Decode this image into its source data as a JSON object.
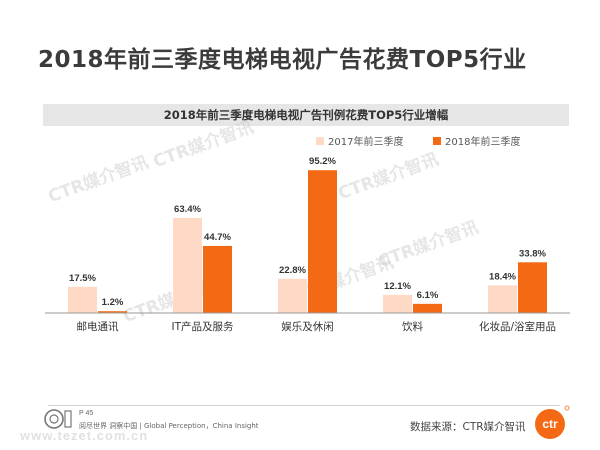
{
  "page": {
    "title": "2018年前三季度电梯电视广告花费TOP5行业",
    "page_number": "P 45",
    "slogan": "阅尽世界  洞察中国 | Global Perception，China Insight",
    "source": "数据来源：CTR媒介智讯",
    "logo_text": "ctr",
    "watermark": "CTR媒介智讯",
    "url_watermark": "www.tezet.com.cn"
  },
  "colors": {
    "series_2017": "#fdd9c6",
    "series_2018": "#f46a14",
    "axis": "#999999"
  },
  "chart_data": {
    "type": "bar",
    "title": "2018年前三季度电梯电视广告刊例花费TOP5行业增幅",
    "categories": [
      "邮电通讯",
      "IT产品及服务",
      "娱乐及休闲",
      "饮料",
      "化妆品/浴室用品"
    ],
    "series": [
      {
        "name": "2017年前三季度",
        "values": [
          17.5,
          63.4,
          22.8,
          12.1,
          18.4
        ],
        "labels": [
          "17.5%",
          "63.4%",
          "22.8%",
          "12.1%",
          "18.4%"
        ]
      },
      {
        "name": "2018年前三季度",
        "values": [
          1.2,
          44.7,
          95.2,
          6.1,
          33.8
        ],
        "labels": [
          "1.2%",
          "44.7%",
          "95.2%",
          "6.1%",
          "33.8%"
        ]
      }
    ],
    "ylim": [
      0,
      100
    ],
    "grid": false,
    "legend_position": "top-right"
  }
}
